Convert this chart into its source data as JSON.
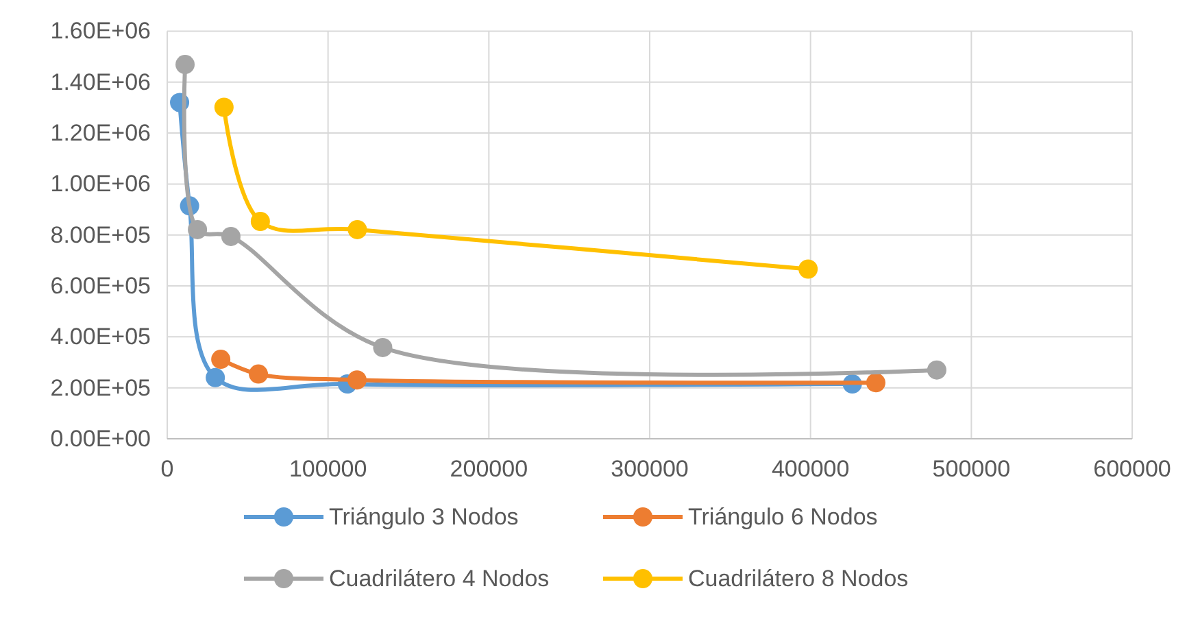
{
  "chart_data": {
    "type": "line",
    "series": [
      {
        "name": "Triángulo 3 Nodos",
        "color": "#5b9bd5",
        "x": [
          7700,
          13900,
          29900,
          112000,
          426000
        ],
        "values": [
          1320000,
          914000,
          240000,
          215000,
          215000
        ]
      },
      {
        "name": "Triángulo 6 Nodos",
        "color": "#ed7d31",
        "x": [
          33300,
          56700,
          118000,
          440600
        ],
        "values": [
          312000,
          254000,
          231000,
          220000
        ]
      },
      {
        "name": "Cuadrilátero 4 Nodos",
        "color": "#a5a5a5",
        "x": [
          11100,
          18800,
          39600,
          134000,
          478500
        ],
        "values": [
          1469000,
          821000,
          794000,
          358000,
          270000
        ]
      },
      {
        "name": "Cuadrilátero 8 Nodos",
        "color": "#ffc000",
        "x": [
          35300,
          57900,
          118200,
          398500
        ],
        "values": [
          1301000,
          853000,
          821000,
          666000
        ]
      }
    ],
    "xlim": [
      0,
      600000
    ],
    "xticks": [
      0,
      100000,
      200000,
      300000,
      400000,
      500000,
      600000
    ],
    "ylim": [
      0,
      1600000
    ],
    "yticks": [
      {
        "value": 0,
        "label": "0.00E+00"
      },
      {
        "value": 200000,
        "label": "2.00E+05"
      },
      {
        "value": 400000,
        "label": "4.00E+05"
      },
      {
        "value": 600000,
        "label": "6.00E+05"
      },
      {
        "value": 800000,
        "label": "8.00E+05"
      },
      {
        "value": 1000000,
        "label": "1.00E+06"
      },
      {
        "value": 1200000,
        "label": "1.20E+06"
      },
      {
        "value": 1400000,
        "label": "1.40E+06"
      },
      {
        "value": 1600000,
        "label": "1.60E+06"
      }
    ],
    "grid": true,
    "legend": "bottom",
    "marker": "circle",
    "line_style": "solid"
  }
}
